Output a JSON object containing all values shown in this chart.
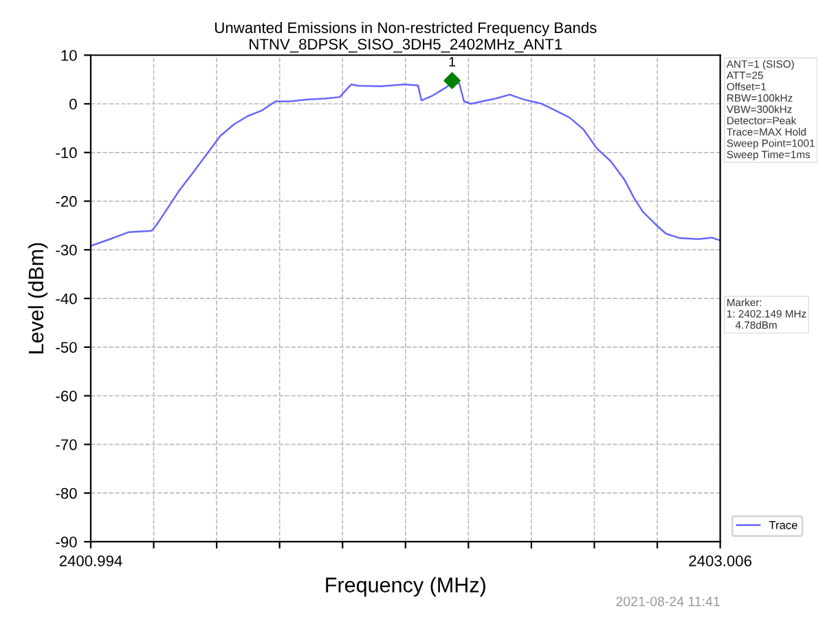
{
  "chart_data": {
    "type": "line",
    "title": "Unwanted Emissions in Non-restricted Frequency Bands\nNTNV_8DPSK_SISO_3DH5_2402MHz_ANT1",
    "xlabel": "Frequency (MHz)",
    "ylabel": "Level (dBm)",
    "xlim": [
      2400.994,
      2403.006
    ],
    "ylim": [
      -90,
      10
    ],
    "xticks": [
      2400.994,
      {
        "value": 2401.1952,
        "label": null
      },
      {
        "value": 2401.3964,
        "label": null
      },
      {
        "value": 2401.5976,
        "label": null
      },
      {
        "value": 2401.7988,
        "label": null
      },
      {
        "value": 2402.0,
        "label": null
      },
      {
        "value": 2402.2012,
        "label": null
      },
      {
        "value": 2402.4024,
        "label": null
      },
      {
        "value": 2402.6036,
        "label": null
      },
      {
        "value": 2402.8048,
        "label": null
      },
      2403.006
    ],
    "yticks": [
      -90,
      -80,
      -70,
      -60,
      -50,
      -40,
      -30,
      -20,
      -10,
      0,
      10
    ],
    "grid": true,
    "legend": "right",
    "series": [
      {
        "name": "Trace",
        "color": "#6666ff",
        "x": [
          2400.994,
          2401.056,
          2401.114,
          2401.188,
          2401.203,
          2401.232,
          2401.276,
          2401.32,
          2401.364,
          2401.408,
          2401.452,
          2401.496,
          2401.54,
          2401.584,
          2401.628,
          2401.687,
          2401.746,
          2401.79,
          2401.805,
          2401.827,
          2401.849,
          2401.922,
          2401.996,
          2402.04,
          2402.051,
          2402.084,
          2402.128,
          2402.15,
          2402.172,
          2402.187,
          2402.209,
          2402.26,
          2402.289,
          2402.333,
          2402.377,
          2402.436,
          2402.48,
          2402.524,
          2402.568,
          2402.612,
          2402.656,
          2402.7,
          2402.73,
          2402.759,
          2402.803,
          2402.833,
          2402.877,
          2402.935,
          2402.98,
          2403.006
        ],
        "values": [
          -29.2,
          -27.8,
          -26.4,
          -26.1,
          -25.0,
          -22.2,
          -17.9,
          -14.2,
          -10.4,
          -6.6,
          -4.2,
          -2.5,
          -1.4,
          0.5,
          0.5,
          0.9,
          1.1,
          1.4,
          2.5,
          4.0,
          3.7,
          3.6,
          4.0,
          3.8,
          0.7,
          1.6,
          3.3,
          4.4,
          4.2,
          0.5,
          0.0,
          0.7,
          1.1,
          1.9,
          0.9,
          0.0,
          -1.4,
          -2.8,
          -5.2,
          -9.2,
          -11.8,
          -15.6,
          -19.3,
          -22.2,
          -25.0,
          -26.7,
          -27.6,
          -27.8,
          -27.5,
          -28.1
        ]
      },
      {
        "type": "scatter",
        "color": "#008000",
        "marker": "diamond",
        "x": [
          2402.149
        ],
        "values": [
          4.78
        ]
      }
    ],
    "annotations": [
      {
        "text": "1",
        "x": 2402.149,
        "y": 4.78
      },
      "ANT=1 (SISO)\nATT=25\nOffset=1\nRBW=100kHz\nVBW=300kHz\nDetector=Peak\nTrace=MAX Hold\nSweep Point=1001\nSweep Time=1ms",
      "Marker:\n1: 2402.149 MHz\n   4.78dBm",
      "2021-08-24 11:41"
    ]
  }
}
